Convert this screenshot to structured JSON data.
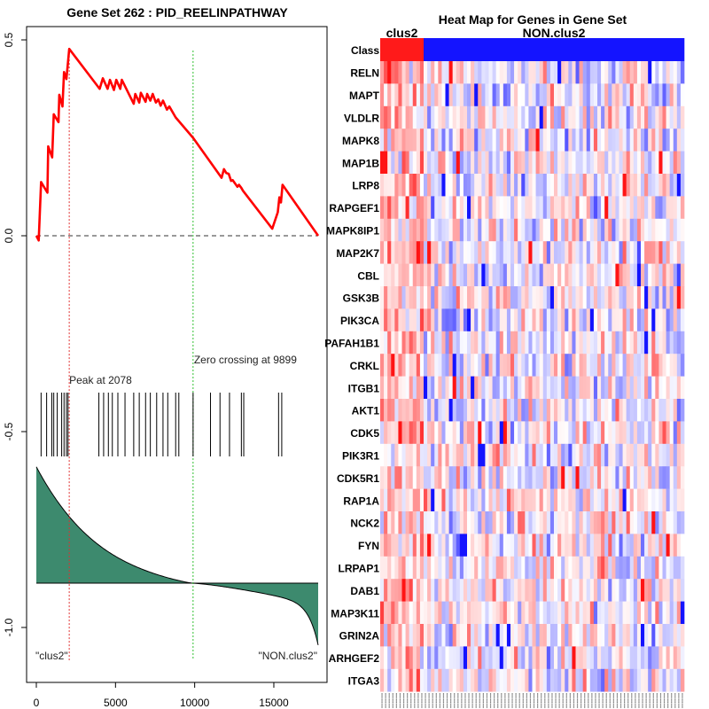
{
  "chart_data": [
    {
      "type": "line",
      "title": "Gene Set  262 : PID_REELINPATHWAY",
      "xlim": [
        0,
        17800
      ],
      "ylim": [
        -1.05,
        0.52
      ],
      "x_ticks": [
        "0",
        "5000",
        "10000",
        "15000"
      ],
      "x_tick_values": [
        0,
        5000,
        10000,
        15000
      ],
      "y_ticks": [
        "-1.0",
        "-0.5",
        "0.0",
        "0.5"
      ],
      "y_tick_values": [
        -1.0,
        -0.5,
        0.0,
        0.5
      ],
      "running_es": [
        [
          0,
          0
        ],
        [
          150,
          -0.012
        ],
        [
          300,
          0.137
        ],
        [
          700,
          0.11
        ],
        [
          750,
          0.228
        ],
        [
          1000,
          0.2
        ],
        [
          1100,
          0.31
        ],
        [
          1400,
          0.29
        ],
        [
          1450,
          0.36
        ],
        [
          1650,
          0.33
        ],
        [
          1750,
          0.418
        ],
        [
          1900,
          0.4
        ],
        [
          2078,
          0.477
        ],
        [
          4000,
          0.375
        ],
        [
          4200,
          0.402
        ],
        [
          4500,
          0.375
        ],
        [
          4650,
          0.398
        ],
        [
          4900,
          0.372
        ],
        [
          5050,
          0.398
        ],
        [
          5300,
          0.375
        ],
        [
          5400,
          0.398
        ],
        [
          6150,
          0.337
        ],
        [
          6250,
          0.362
        ],
        [
          6500,
          0.34
        ],
        [
          6600,
          0.365
        ],
        [
          6900,
          0.342
        ],
        [
          7000,
          0.362
        ],
        [
          7200,
          0.345
        ],
        [
          7350,
          0.362
        ],
        [
          7550,
          0.34
        ],
        [
          7700,
          0.348
        ],
        [
          7850,
          0.332
        ],
        [
          8000,
          0.345
        ],
        [
          8250,
          0.322
        ],
        [
          8400,
          0.33
        ],
        [
          8800,
          0.302
        ],
        [
          9899,
          0.25
        ],
        [
          11700,
          0.148
        ],
        [
          11850,
          0.17
        ],
        [
          12000,
          0.16
        ],
        [
          12150,
          0.158
        ],
        [
          12300,
          0.14
        ],
        [
          12400,
          0.142
        ],
        [
          12700,
          0.125
        ],
        [
          12800,
          0.13
        ],
        [
          12950,
          0.122
        ],
        [
          13050,
          0.115
        ],
        [
          14900,
          0.018
        ],
        [
          15250,
          0.06
        ],
        [
          15350,
          0.098
        ],
        [
          15450,
          0.085
        ],
        [
          15550,
          0.13
        ],
        [
          17800,
          0
        ]
      ],
      "hit_positions": [
        300,
        650,
        980,
        1100,
        1320,
        1600,
        1750,
        1900,
        2000,
        3950,
        4250,
        4550,
        4800,
        5150,
        5600,
        6150,
        6500,
        6900,
        7200,
        7600,
        8000,
        8300,
        8800,
        9000,
        9900,
        11000,
        11600,
        12200,
        12950,
        13100,
        15300,
        15500
      ],
      "peak_label": "Peak at 2078",
      "peak_x": 2078,
      "zero_crossing_label": "Zero crossing at 9899",
      "zero_crossing_x": 9899,
      "left_class_label": "\"clus2\"",
      "right_class_label": "\"NON.clus2\"",
      "metric_curve": {
        "baseline": -0.887,
        "start": -0.59,
        "end": -1.045,
        "pos_shape": 0.28,
        "neg_shape": 0.45
      }
    },
    {
      "type": "heatmap",
      "title": "Heat Map for Genes in Gene Set",
      "class_row_label": "Class",
      "groups": [
        {
          "name": "clus2",
          "columns": 12,
          "color": "#ff1a1a"
        },
        {
          "name": "NON.clus2",
          "columns": 72,
          "color": "#1414ff"
        }
      ],
      "rows": [
        "RELN",
        "MAPT",
        "VLDLR",
        "MAPK8",
        "MAP1B",
        "LRP8",
        "RAPGEF1",
        "MAPK8IP1",
        "MAP2K7",
        "CBL",
        "GSK3B",
        "PIK3CA",
        "PAFAH1B1",
        "CRKL",
        "ITGB1",
        "AKT1",
        "CDK5",
        "PIK3R1",
        "CDK5R1",
        "RAP1A",
        "NCK2",
        "FYN",
        "LRPAP1",
        "DAB1",
        "MAP3K11",
        "GRIN2A",
        "ARHGEF2",
        "ITGA3"
      ],
      "color_scale": {
        "low": "#0000ff",
        "mid": "#ffffff",
        "high": "#ff0000"
      },
      "seed": 262
    }
  ]
}
